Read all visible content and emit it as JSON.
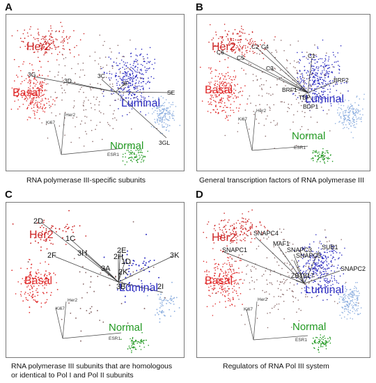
{
  "figure": {
    "colors": {
      "her2": "#cc2222",
      "basal": "#e02a2a",
      "luminal": "#2a2ac0",
      "luminal_light": "#8fb0e0",
      "normal": "#229922",
      "frame": "#777777",
      "arrow": "#333333",
      "noise": "#8a6a6a"
    },
    "panels": [
      {
        "letter": "A",
        "caption": "RNA polymerase III-specific subunits",
        "clusters": {
          "her2": "Her2",
          "basal": "Basal",
          "luminal": "Luminal",
          "normal": "Normal"
        },
        "markers": {
          "ki67": "Ki67",
          "her2": "Her2",
          "esr1": "ESR1"
        },
        "vectors": [
          "3G",
          "3D",
          "3C",
          "3F",
          "SE",
          "3GL"
        ]
      },
      {
        "letter": "B",
        "caption": "General transcription factors of RNA polymerase III",
        "clusters": {
          "her2": "Her2",
          "basal": "Basal",
          "luminal": "Luminal",
          "normal": "Normal"
        },
        "markers": {
          "ki67": "Ki67",
          "her2": "Her2",
          "esr1": "ESR1"
        },
        "vectors": [
          "C6",
          "C5",
          "C2",
          "C4",
          "C3",
          "C1",
          "BRF1",
          "TBP",
          "BDP1",
          "BRF2"
        ]
      },
      {
        "letter": "C",
        "caption_lines": [
          "RNA polymerase III subunits that are homologous",
          "or identical to Pol I and Pol II subunits"
        ],
        "clusters": {
          "her2": "Her2",
          "basal": "Basal",
          "luminal": "Luminal",
          "normal": "Normal"
        },
        "markers": {
          "ki67": "Ki67",
          "her2": "Her2",
          "esr1": "ESR1"
        },
        "vectors": [
          "2D",
          "1C",
          "2F",
          "3H",
          "2E",
          "2H",
          "1D",
          "3A",
          "2K",
          "3B",
          "2I",
          "3K"
        ]
      },
      {
        "letter": "D",
        "caption": "Regulators of RNA Pol III system",
        "clusters": {
          "her2": "Her2",
          "basal": "Basal",
          "luminal": "Luminal",
          "normal": "Normal"
        },
        "markers": {
          "ki67": "Ki67",
          "her2": "Her2",
          "esr1": "ESR1"
        },
        "vectors": [
          "SNAPC4",
          "MAF1",
          "SNAPC1",
          "SNAPC3",
          "SUB1",
          "SNAPC5",
          "ZBTB17",
          "SNAPC2"
        ]
      }
    ]
  }
}
